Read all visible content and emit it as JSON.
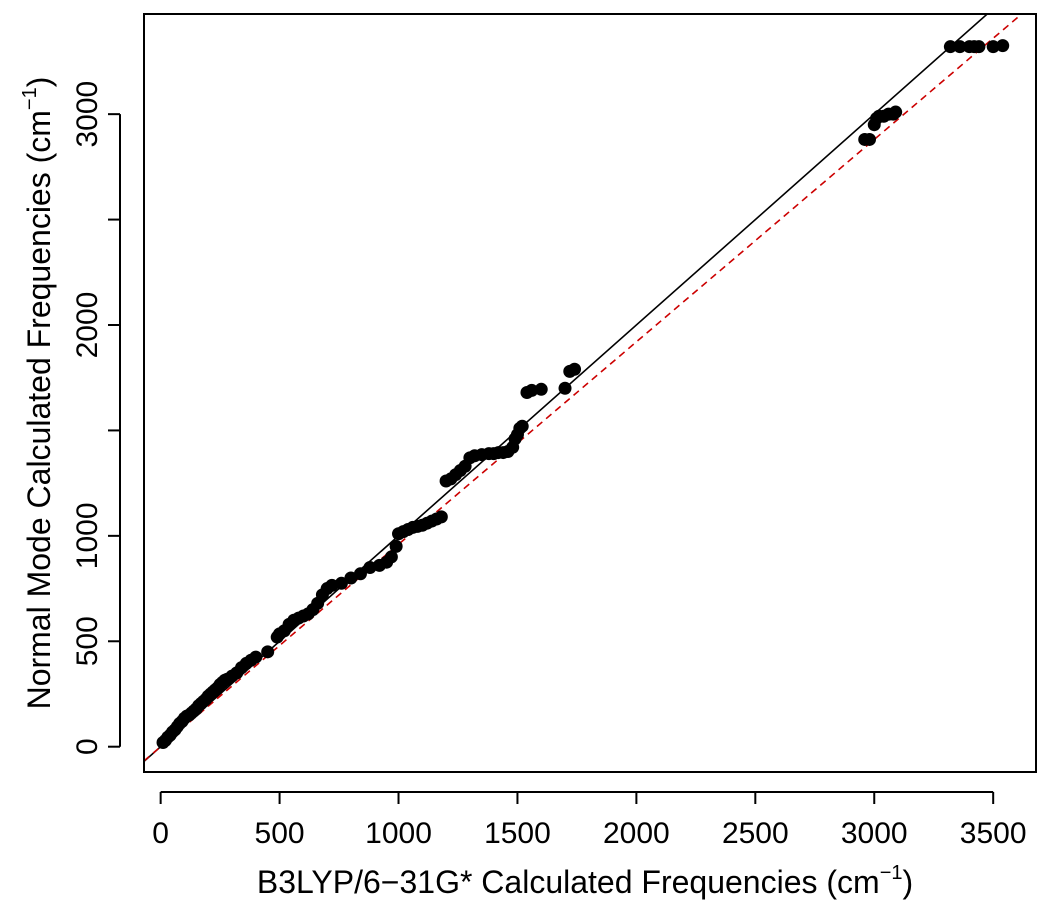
{
  "chart_data": {
    "type": "scatter",
    "title": "",
    "xlabel": "B3LYP/6−31G* Calculated Frequencies (cm",
    "xlabel_sup": "−1",
    "xlabel_end": ")",
    "ylabel": "Normal Mode Calculated Frequencies (cm",
    "ylabel_sup": "−1",
    "ylabel_end": ")",
    "xlim": [
      -70,
      3680
    ],
    "ylim": [
      -120,
      3475
    ],
    "grid": false,
    "x_ticks": [
      0,
      500,
      1000,
      1500,
      2000,
      2500,
      3000,
      3500
    ],
    "x_tick_labels": [
      "0",
      "500",
      "1000",
      "1500",
      "2000",
      "2500",
      "3000",
      "3500"
    ],
    "y_ticks": [
      0,
      500,
      1000,
      1500,
      2000,
      2500,
      3000
    ],
    "y_tick_labels": [
      "0",
      "500",
      "1000",
      "",
      "2000",
      "",
      "3000"
    ],
    "reference_lines": [
      {
        "kind": "identity",
        "slope": 1.0,
        "intercept": 0,
        "color": "#000000",
        "style": "solid"
      },
      {
        "kind": "fit",
        "slope": 0.96,
        "intercept": 0,
        "color": "#cc0000",
        "style": "dashed"
      }
    ],
    "series": [
      {
        "color": "#000000",
        "x": [
          10,
          20,
          30,
          40,
          50,
          60,
          70,
          80,
          90,
          100,
          110,
          120,
          130,
          140,
          150,
          160,
          170,
          180,
          190,
          200,
          210,
          220,
          230,
          240,
          250,
          260,
          270,
          280,
          300,
          320,
          340,
          360,
          380,
          400,
          450,
          490,
          500,
          520,
          540,
          560,
          580,
          600,
          620,
          640,
          660,
          680,
          700,
          720,
          760,
          800,
          840,
          880,
          920,
          950,
          970,
          990,
          1000,
          1020,
          1040,
          1060,
          1080,
          1100,
          1120,
          1140,
          1160,
          1180,
          1200,
          1220,
          1240,
          1260,
          1280,
          1300,
          1320,
          1350,
          1380,
          1400,
          1420,
          1440,
          1460,
          1480,
          1490,
          1500,
          1510,
          1520,
          1540,
          1560,
          1600,
          1700,
          1720,
          1740,
          2960,
          2980,
          3000,
          3010,
          3020,
          3040,
          3060,
          3080,
          3090,
          3320,
          3360,
          3400,
          3420,
          3440,
          3500,
          3540
        ],
        "y": [
          20,
          30,
          45,
          55,
          70,
          80,
          95,
          110,
          120,
          135,
          145,
          150,
          160,
          170,
          180,
          195,
          205,
          215,
          225,
          240,
          250,
          260,
          270,
          280,
          295,
          305,
          315,
          320,
          335,
          350,
          375,
          395,
          410,
          425,
          450,
          520,
          535,
          550,
          580,
          600,
          610,
          620,
          630,
          650,
          680,
          720,
          750,
          765,
          775,
          800,
          820,
          850,
          860,
          875,
          900,
          950,
          1010,
          1020,
          1030,
          1040,
          1045,
          1050,
          1060,
          1070,
          1080,
          1090,
          1260,
          1270,
          1290,
          1310,
          1330,
          1370,
          1380,
          1385,
          1390,
          1390,
          1395,
          1395,
          1400,
          1420,
          1460,
          1480,
          1510,
          1520,
          1680,
          1690,
          1695,
          1700,
          1780,
          1790,
          2880,
          2880,
          2950,
          2980,
          2990,
          2990,
          3000,
          3000,
          3010,
          3320,
          3320,
          3320,
          3320,
          3320,
          3320,
          3325
        ]
      }
    ]
  }
}
